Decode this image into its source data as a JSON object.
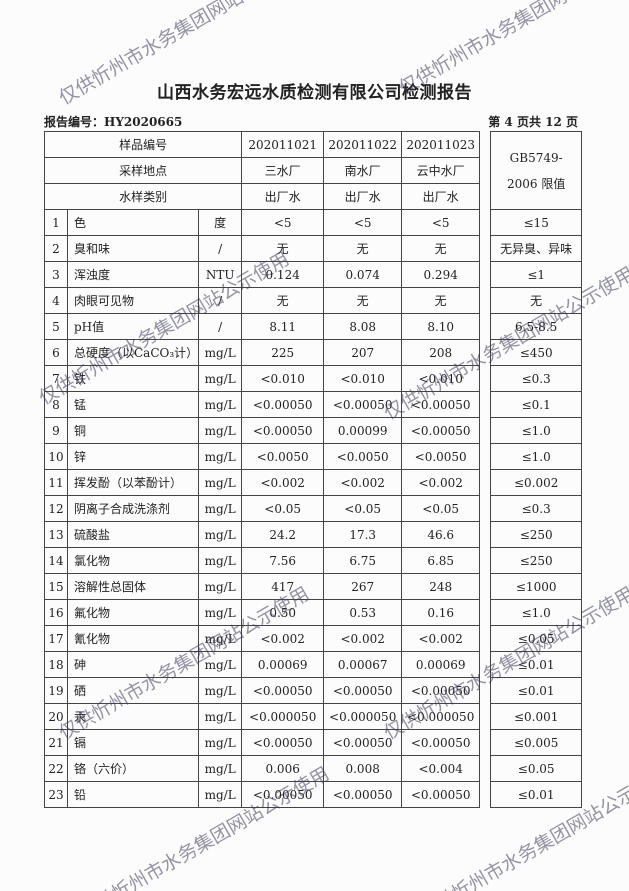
{
  "title": "山西水务宏远水质检测有限公司检测报告",
  "report_no": "报告编号：HY2020665",
  "page_info": "第 4 页共 12 页",
  "header": {
    "sample_no_label": "样品编号",
    "site_label": "采样地点",
    "type_label": "水样类别",
    "limit_label": "GB5749-2006 限值",
    "samples": [
      {
        "no": "202011021",
        "site": "三水厂",
        "type": "出厂水"
      },
      {
        "no": "202011022",
        "site": "南水厂",
        "type": "出厂水"
      },
      {
        "no": "202011023",
        "site": "云中水厂",
        "type": "出厂水"
      }
    ]
  },
  "rows": [
    {
      "n": "1",
      "name": "色",
      "unit": "度",
      "v": [
        "<5",
        "<5",
        "<5"
      ],
      "limit": "≤15"
    },
    {
      "n": "2",
      "name": "臭和味",
      "unit": "/",
      "v": [
        "无",
        "无",
        "无"
      ],
      "limit": "无异臭、异味"
    },
    {
      "n": "3",
      "name": "浑浊度",
      "unit": "NTU",
      "v": [
        "0.124",
        "0.074",
        "0.294"
      ],
      "limit": "≤1"
    },
    {
      "n": "4",
      "name": "肉眼可见物",
      "unit": "/",
      "v": [
        "无",
        "无",
        "无"
      ],
      "limit": "无"
    },
    {
      "n": "5",
      "name": "pH值",
      "unit": "/",
      "v": [
        "8.11",
        "8.08",
        "8.10"
      ],
      "limit": "6.5-8.5"
    },
    {
      "n": "6",
      "name": "总硬度（以CaCO₃计）",
      "unit": "mg/L",
      "v": [
        "225",
        "207",
        "208"
      ],
      "limit": "≤450"
    },
    {
      "n": "7",
      "name": "铁",
      "unit": "mg/L",
      "v": [
        "<0.010",
        "<0.010",
        "<0.010"
      ],
      "limit": "≤0.3"
    },
    {
      "n": "8",
      "name": "锰",
      "unit": "mg/L",
      "v": [
        "<0.00050",
        "<0.00050",
        "<0.00050"
      ],
      "limit": "≤0.1"
    },
    {
      "n": "9",
      "name": "铜",
      "unit": "mg/L",
      "v": [
        "<0.00050",
        "0.00099",
        "<0.00050"
      ],
      "limit": "≤1.0"
    },
    {
      "n": "10",
      "name": "锌",
      "unit": "mg/L",
      "v": [
        "<0.0050",
        "<0.0050",
        "<0.0050"
      ],
      "limit": "≤1.0"
    },
    {
      "n": "11",
      "name": "挥发酚（以苯酚计）",
      "unit": "mg/L",
      "v": [
        "<0.002",
        "<0.002",
        "<0.002"
      ],
      "limit": "≤0.002"
    },
    {
      "n": "12",
      "name": "阴离子合成洗涤剂",
      "unit": "mg/L",
      "v": [
        "<0.05",
        "<0.05",
        "<0.05"
      ],
      "limit": "≤0.3"
    },
    {
      "n": "13",
      "name": "硫酸盐",
      "unit": "mg/L",
      "v": [
        "24.2",
        "17.3",
        "46.6"
      ],
      "limit": "≤250"
    },
    {
      "n": "14",
      "name": "氯化物",
      "unit": "mg/L",
      "v": [
        "7.56",
        "6.75",
        "6.85"
      ],
      "limit": "≤250"
    },
    {
      "n": "15",
      "name": "溶解性总固体",
      "unit": "mg/L",
      "v": [
        "417",
        "267",
        "248"
      ],
      "limit": "≤1000"
    },
    {
      "n": "16",
      "name": "氟化物",
      "unit": "mg/L",
      "v": [
        "0.50",
        "0.53",
        "0.16"
      ],
      "limit": "≤1.0"
    },
    {
      "n": "17",
      "name": "氰化物",
      "unit": "mg/L",
      "v": [
        "<0.002",
        "<0.002",
        "<0.002"
      ],
      "limit": "≤0.05"
    },
    {
      "n": "18",
      "name": "砷",
      "unit": "mg/L",
      "v": [
        "0.00069",
        "0.00067",
        "0.00069"
      ],
      "limit": "≤0.01"
    },
    {
      "n": "19",
      "name": "硒",
      "unit": "mg/L",
      "v": [
        "<0.00050",
        "<0.00050",
        "<0.00050"
      ],
      "limit": "≤0.01"
    },
    {
      "n": "20",
      "name": "汞",
      "unit": "mg/L",
      "v": [
        "<0.000050",
        "<0.000050",
        "<0.000050"
      ],
      "limit": "≤0.001"
    },
    {
      "n": "21",
      "name": "镉",
      "unit": "mg/L",
      "v": [
        "<0.00050",
        "<0.00050",
        "<0.00050"
      ],
      "limit": "≤0.005"
    },
    {
      "n": "22",
      "name": "铬（六价）",
      "unit": "mg/L",
      "v": [
        "0.006",
        "0.008",
        "<0.004"
      ],
      "limit": "≤0.05"
    },
    {
      "n": "23",
      "name": "铅",
      "unit": "mg/L",
      "v": [
        "<0.00050",
        "<0.00050",
        "<0.00050"
      ],
      "limit": "≤0.01"
    }
  ],
  "watermark": "仅供忻州市水务集团网站公示使用"
}
